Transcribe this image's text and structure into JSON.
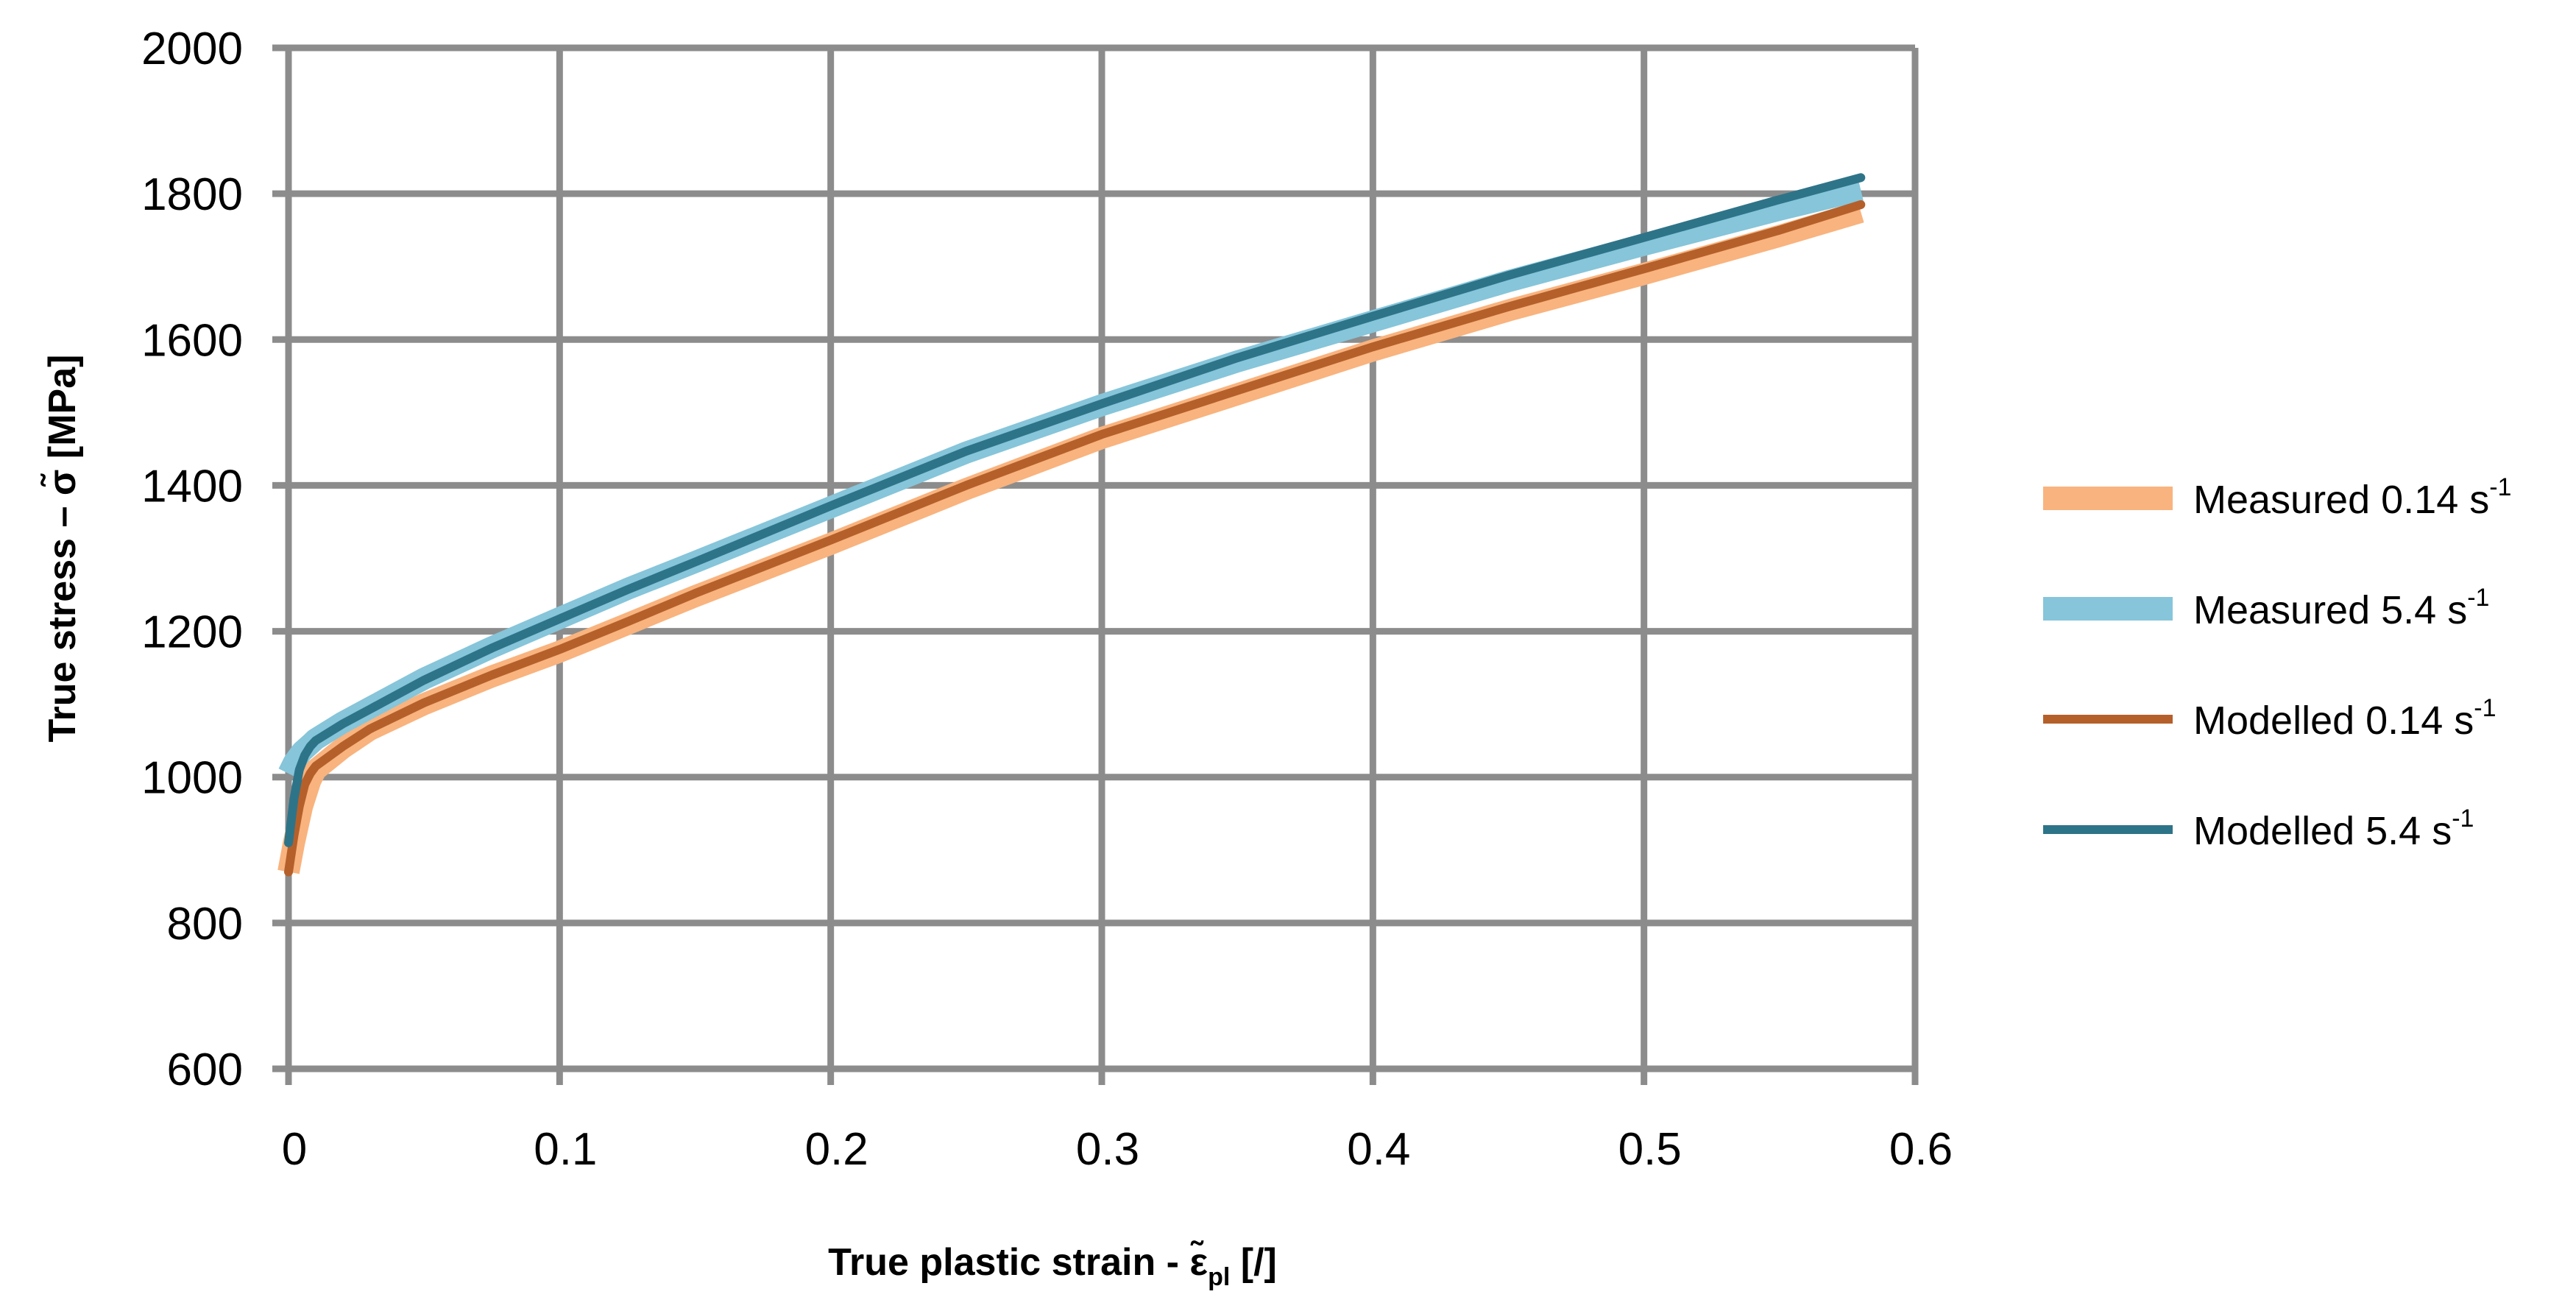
{
  "chart_data": {
    "type": "line",
    "title": "",
    "xlabel": "True plastic strain - ε̃",
    "xlabel_sub": "pl",
    "xlabel_unit": " [/]",
    "ylabel": "True stress – σ̃ [MPa]",
    "xlim": [
      0,
      0.6
    ],
    "ylim": [
      600,
      2000
    ],
    "xticks": [
      0,
      0.1,
      0.2,
      0.3,
      0.4,
      0.5,
      0.6
    ],
    "yticks": [
      600,
      800,
      1000,
      1200,
      1400,
      1600,
      1800,
      2000
    ],
    "grid": true,
    "legend_position": "right",
    "series": [
      {
        "name": "Measured 0.14 s",
        "sup": "-1",
        "color": "#F9B37E",
        "style": "band",
        "x": [
          0,
          0.002,
          0.005,
          0.008,
          0.01,
          0.02,
          0.03,
          0.05,
          0.075,
          0.1,
          0.125,
          0.15,
          0.2,
          0.25,
          0.3,
          0.35,
          0.4,
          0.45,
          0.5,
          0.55,
          0.58
        ],
        "y": [
          870,
          910,
          960,
          995,
          1010,
          1040,
          1065,
          1100,
          1138,
          1172,
          1210,
          1248,
          1320,
          1395,
          1465,
          1525,
          1585,
          1640,
          1690,
          1742,
          1775
        ]
      },
      {
        "name": "Measured 5.4 s",
        "sup": "-1",
        "color": "#86C5DA",
        "style": "band",
        "x": [
          0,
          0.002,
          0.005,
          0.008,
          0.01,
          0.02,
          0.03,
          0.05,
          0.075,
          0.1,
          0.125,
          0.15,
          0.2,
          0.25,
          0.3,
          0.35,
          0.4,
          0.45,
          0.5,
          0.55,
          0.58
        ],
        "y": [
          1005,
          1020,
          1035,
          1045,
          1052,
          1075,
          1095,
          1135,
          1178,
          1218,
          1258,
          1295,
          1370,
          1445,
          1510,
          1570,
          1625,
          1680,
          1730,
          1778,
          1805
        ]
      },
      {
        "name": "Modelled 0.14 s",
        "sup": "-1",
        "color": "#B5602A",
        "style": "line",
        "x": [
          0,
          0.002,
          0.004,
          0.006,
          0.008,
          0.01,
          0.02,
          0.03,
          0.05,
          0.075,
          0.1,
          0.125,
          0.15,
          0.2,
          0.25,
          0.3,
          0.35,
          0.4,
          0.45,
          0.5,
          0.55,
          0.58
        ],
        "y": [
          870,
          920,
          960,
          990,
          1005,
          1015,
          1042,
          1066,
          1102,
          1140,
          1175,
          1213,
          1252,
          1325,
          1400,
          1470,
          1530,
          1590,
          1645,
          1697,
          1750,
          1785
        ]
      },
      {
        "name": "Modelled 5.4 s",
        "sup": "-1",
        "color": "#2E7489",
        "style": "line",
        "x": [
          0,
          0.002,
          0.004,
          0.006,
          0.008,
          0.01,
          0.02,
          0.03,
          0.05,
          0.075,
          0.1,
          0.125,
          0.15,
          0.2,
          0.25,
          0.3,
          0.35,
          0.4,
          0.45,
          0.5,
          0.55,
          0.58
        ],
        "y": [
          910,
          970,
          1010,
          1030,
          1042,
          1050,
          1073,
          1093,
          1133,
          1177,
          1217,
          1257,
          1295,
          1372,
          1447,
          1512,
          1575,
          1632,
          1688,
          1740,
          1792,
          1822
        ]
      }
    ]
  }
}
